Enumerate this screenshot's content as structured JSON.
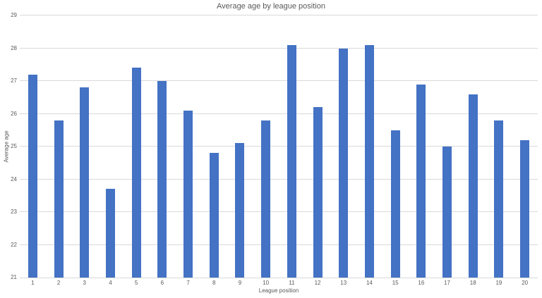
{
  "chart_data": {
    "type": "bar",
    "title": "Average age by league position",
    "xlabel": "League position",
    "ylabel": "Average age",
    "categories": [
      "1",
      "2",
      "3",
      "4",
      "5",
      "6",
      "7",
      "8",
      "9",
      "10",
      "11",
      "12",
      "13",
      "14",
      "15",
      "16",
      "17",
      "18",
      "19",
      "20"
    ],
    "values": [
      27.2,
      25.8,
      26.8,
      23.7,
      27.4,
      27.0,
      26.1,
      24.8,
      25.1,
      25.8,
      28.1,
      26.2,
      28.0,
      28.1,
      25.5,
      26.9,
      25.0,
      26.6,
      25.8,
      25.2
    ],
    "ylim": [
      21,
      29
    ],
    "ytick_step": 1,
    "grid": true,
    "legend_position": "none",
    "bar_color": "#4472c4",
    "gridline_color": "#d9d9d9",
    "text_color": "#595959"
  }
}
